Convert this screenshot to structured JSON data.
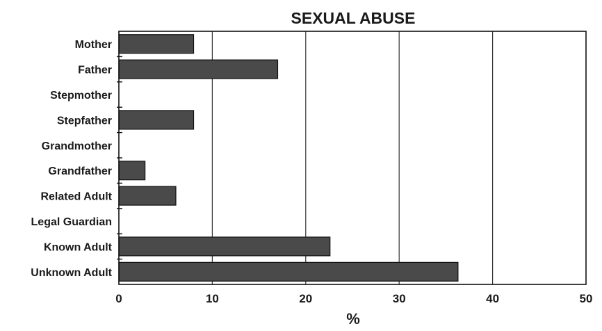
{
  "chart_data": {
    "type": "bar",
    "orientation": "horizontal",
    "title": "SEXUAL ABUSE",
    "xlabel": "%",
    "ylabel": "",
    "xlim": [
      0,
      50
    ],
    "xticks": [
      0,
      10,
      20,
      30,
      40,
      50
    ],
    "grid": "vertical",
    "categories": [
      "Mother",
      "Father",
      "Stepmother",
      "Stepfather",
      "Grandmother",
      "Grandfather",
      "Related Adult",
      "Legal Guardian",
      "Known Adult",
      "Unknown Adult"
    ],
    "values": [
      8,
      17,
      0,
      8,
      0,
      2.8,
      6.1,
      0,
      22.6,
      36.3
    ],
    "colors": {
      "bar": "#4a4a4a",
      "frame": "#111111"
    }
  }
}
